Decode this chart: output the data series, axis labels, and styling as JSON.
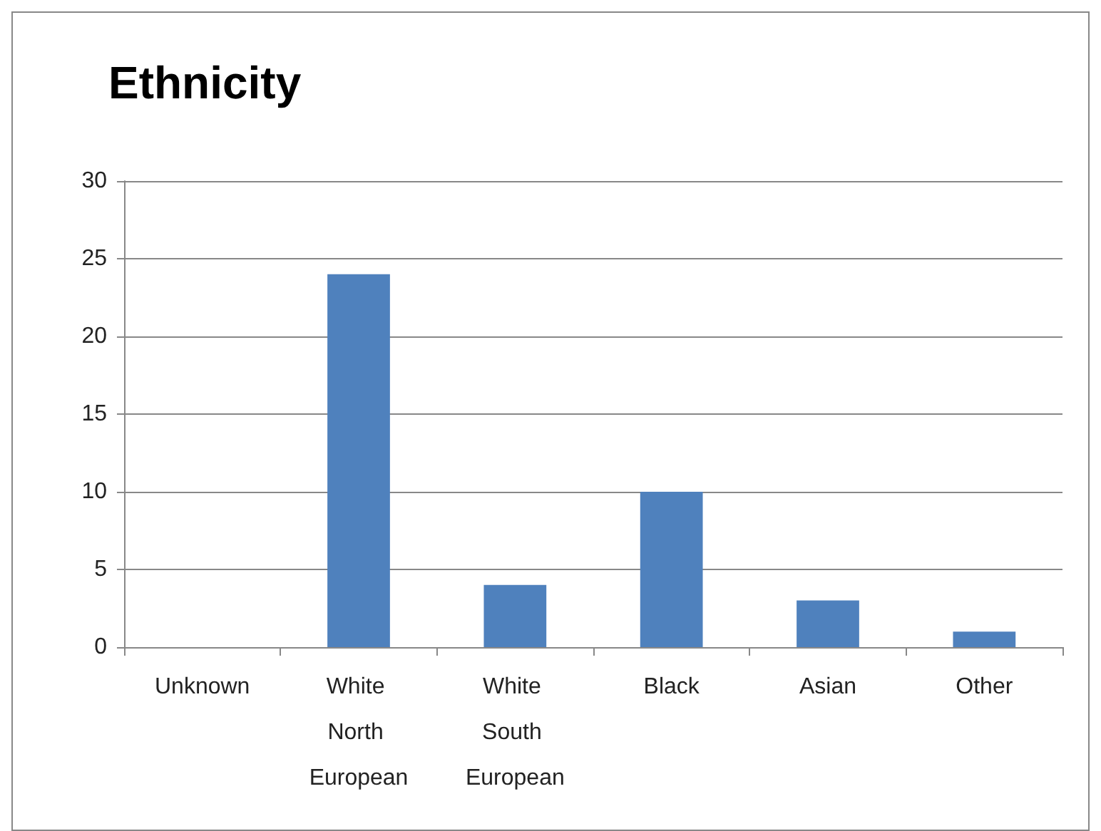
{
  "chart_data": {
    "type": "bar",
    "title": "Ethnicity",
    "categories": [
      "Unknown",
      "White North European",
      "White South European",
      "Black",
      "Asian",
      "Other"
    ],
    "values": [
      0,
      24,
      4,
      10,
      3,
      1
    ],
    "color": "#4f81bd",
    "ylim": [
      0,
      30
    ],
    "yticks": [
      0,
      5,
      10,
      15,
      20,
      25,
      30
    ],
    "grid": "y"
  }
}
